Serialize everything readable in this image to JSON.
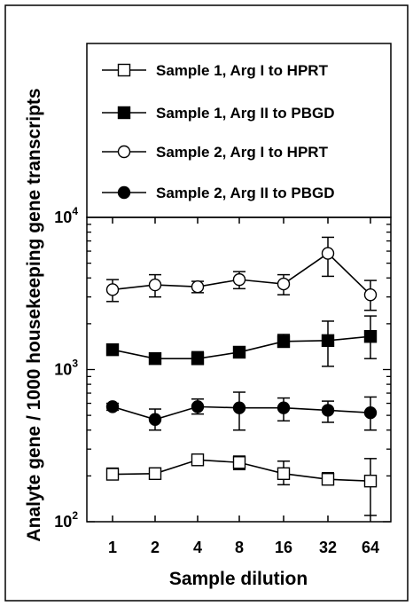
{
  "chart_data": {
    "type": "line",
    "xlabel": "Sample dilution",
    "ylabel": "Analyte gene / 1000 housekeeping gene transcripts",
    "y_scale": "log",
    "ylim": [
      100,
      10000
    ],
    "y_ticks": [
      {
        "value": 100,
        "base": "10",
        "exp": "2"
      },
      {
        "value": 1000,
        "base": "10",
        "exp": "3"
      },
      {
        "value": 10000,
        "base": "10",
        "exp": "4"
      }
    ],
    "categories": [
      "1",
      "2",
      "4",
      "8",
      "16",
      "32",
      "64"
    ],
    "legend_position": "top",
    "series": [
      {
        "name": "Sample 1, Arg I to HPRT",
        "marker": "square-open",
        "values": [
          205,
          207,
          255,
          245,
          207,
          190,
          185
        ],
        "error_low": [
          190,
          190,
          238,
          220,
          175,
          175,
          110
        ],
        "error_high": [
          225,
          225,
          275,
          270,
          250,
          210,
          260
        ]
      },
      {
        "name": "Sample 1, Arg II to PBGD",
        "marker": "square-filled",
        "values": [
          1350,
          1180,
          1180,
          1300,
          1530,
          1550,
          1650
        ],
        "error_low": [
          1300,
          1100,
          1080,
          1220,
          1400,
          1050,
          1180
        ],
        "error_high": [
          1400,
          1260,
          1310,
          1380,
          1700,
          2080,
          2250
        ]
      },
      {
        "name": "Sample 2, Arg I to HPRT",
        "marker": "circle-open",
        "values": [
          3350,
          3600,
          3500,
          3900,
          3650,
          5800,
          3100
        ],
        "error_low": [
          2800,
          3000,
          3200,
          3400,
          3100,
          4100,
          2450
        ],
        "error_high": [
          3900,
          4200,
          3800,
          4400,
          4200,
          7400,
          3850
        ]
      },
      {
        "name": "Sample 2, Arg II to PBGD",
        "marker": "circle-filled",
        "values": [
          570,
          470,
          570,
          560,
          560,
          540,
          520
        ],
        "error_low": [
          540,
          400,
          510,
          400,
          460,
          450,
          400
        ],
        "error_high": [
          600,
          550,
          640,
          710,
          650,
          620,
          660
        ]
      }
    ]
  }
}
